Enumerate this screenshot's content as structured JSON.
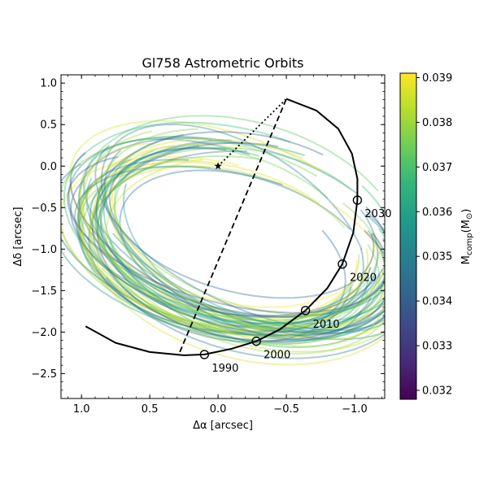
{
  "chart_data": {
    "type": "line",
    "title": "Gl758 Astrometric Orbits",
    "xlabel": "Δα [arcsec]",
    "ylabel": "Δδ [arcsec]",
    "xlim": [
      1.15,
      -1.22
    ],
    "ylim": [
      -2.8,
      1.1
    ],
    "x_inverted": true,
    "x_ticks": [
      1.0,
      0.5,
      0.0,
      -0.5,
      -1.0
    ],
    "x_tick_labels": [
      "1.0",
      "0.5",
      "0.0",
      "−0.5",
      "−1.0"
    ],
    "y_ticks": [
      1.0,
      0.5,
      0.0,
      -0.5,
      -1.0,
      -1.5,
      -2.0,
      -2.5
    ],
    "y_tick_labels": [
      "1.0",
      "0.5",
      "0.0",
      "−0.5",
      "−1.0",
      "−1.5",
      "−2.0",
      "−2.5"
    ],
    "grid": false,
    "star": {
      "x": 0.0,
      "y": 0.0,
      "marker": "star"
    },
    "best_fit_orbit": {
      "color": "#000000",
      "points": [
        {
          "x": 0.97,
          "y": -1.93
        },
        {
          "x": 0.75,
          "y": -2.13
        },
        {
          "x": 0.5,
          "y": -2.24
        },
        {
          "x": 0.25,
          "y": -2.28
        },
        {
          "x": 0.1,
          "y": -2.27
        },
        {
          "x": -0.1,
          "y": -2.2
        },
        {
          "x": -0.28,
          "y": -2.11
        },
        {
          "x": -0.45,
          "y": -1.97
        },
        {
          "x": -0.64,
          "y": -1.74
        },
        {
          "x": -0.8,
          "y": -1.47
        },
        {
          "x": -0.91,
          "y": -1.18
        },
        {
          "x": -0.99,
          "y": -0.8
        },
        {
          "x": -1.02,
          "y": -0.41
        },
        {
          "x": -1.02,
          "y": -0.15
        },
        {
          "x": -0.98,
          "y": 0.15
        },
        {
          "x": -0.88,
          "y": 0.45
        },
        {
          "x": -0.72,
          "y": 0.67
        },
        {
          "x": -0.5,
          "y": 0.81
        }
      ]
    },
    "epochs": [
      {
        "label": "1990",
        "x": 0.1,
        "y": -2.27
      },
      {
        "label": "2000",
        "x": -0.28,
        "y": -2.11
      },
      {
        "label": "2010",
        "x": -0.64,
        "y": -1.74
      },
      {
        "label": "2020",
        "x": -0.91,
        "y": -1.18
      },
      {
        "label": "2030",
        "x": -1.02,
        "y": -0.41
      }
    ],
    "line_of_nodes": {
      "style": "dashed",
      "from": {
        "x": 0.28,
        "y": -2.24
      },
      "to": {
        "x": -0.5,
        "y": 0.81
      }
    },
    "periastron_line": {
      "style": "dotted",
      "from": {
        "x": 0.0,
        "y": 0.0
      },
      "to": {
        "x": -0.5,
        "y": 0.81
      }
    },
    "sampled_orbits_note_count": 60,
    "colorbar": {
      "label": "M_comp(M_⊙)",
      "range": [
        0.0318,
        0.0391
      ],
      "ticks": [
        0.032,
        0.033,
        0.034,
        0.035,
        0.036,
        0.037,
        0.038,
        0.039
      ],
      "tick_labels": [
        "0.032",
        "0.033",
        "0.034",
        "0.035",
        "0.036",
        "0.037",
        "0.038",
        "0.039"
      ],
      "colormap": "viridis",
      "colormap_stops": [
        "#440154",
        "#482878",
        "#3e4989",
        "#31688e",
        "#26828e",
        "#1f9e89",
        "#35b779",
        "#6ece58",
        "#b5de2b",
        "#fde725"
      ]
    }
  }
}
